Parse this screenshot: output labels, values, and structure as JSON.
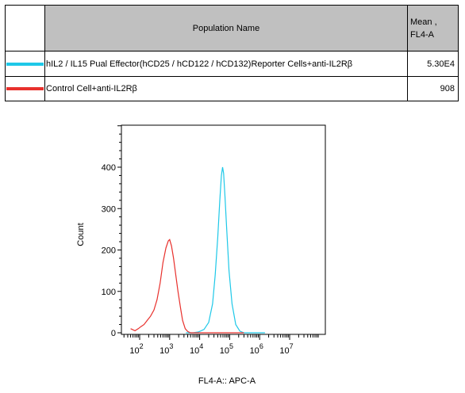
{
  "legend": {
    "header_name": "Population Name",
    "header_mean_line1": "Mean ,",
    "header_mean_line2": "FL4-A",
    "rows": [
      {
        "color": "#1ec8e8",
        "name": "hIL2 / IL15 Pual Effector(hCD25 / hCD122 / hCD132)Reporter Cells+anti-IL2Rβ",
        "mean": "5.30E4"
      },
      {
        "color": "#e8302c",
        "name": "Control Cell+anti-IL2Rβ",
        "mean": "908"
      }
    ]
  },
  "chart_data": {
    "type": "line",
    "xlabel": "FL4-A:: APC-A",
    "ylabel": "Count",
    "x_scale": "log",
    "ylim": [
      0,
      500
    ],
    "yticks": [
      0,
      100,
      200,
      300,
      400
    ],
    "xticks": [
      {
        "base": "10",
        "exp": "2"
      },
      {
        "base": "10",
        "exp": "3"
      },
      {
        "base": "10",
        "exp": "4"
      },
      {
        "base": "10",
        "exp": "5"
      },
      {
        "base": "10",
        "exp": "6"
      },
      {
        "base": "10",
        "exp": "7"
      }
    ],
    "grid": false,
    "series": [
      {
        "name": "hIL2 / IL15 Pual Effector(hCD25 / hCD122 / hCD132)Reporter Cells+anti-IL2Rβ",
        "color": "#1ec8e8",
        "x": [
          3500,
          6000,
          9000,
          14000,
          20000,
          27000,
          33000,
          40000,
          47000,
          53000,
          58000,
          63000,
          70000,
          80000,
          95000,
          120000,
          160000,
          220000,
          300000,
          1500000
        ],
        "y": [
          0,
          0,
          2,
          8,
          25,
          70,
          140,
          230,
          320,
          380,
          400,
          385,
          330,
          250,
          150,
          70,
          20,
          4,
          0,
          0
        ]
      },
      {
        "name": "Control Cell+anti-IL2Rβ",
        "color": "#e8302c",
        "x": [
          50,
          70,
          90,
          110,
          140,
          180,
          230,
          300,
          380,
          480,
          600,
          750,
          900,
          1000,
          1150,
          1350,
          1600,
          1900,
          2300,
          2700,
          3300,
          4000,
          5000,
          8000,
          20000,
          300000
        ],
        "y": [
          10,
          5,
          10,
          15,
          20,
          30,
          40,
          55,
          80,
          120,
          170,
          205,
          222,
          225,
          210,
          180,
          140,
          100,
          60,
          30,
          10,
          3,
          0,
          0,
          0,
          0
        ]
      }
    ]
  }
}
